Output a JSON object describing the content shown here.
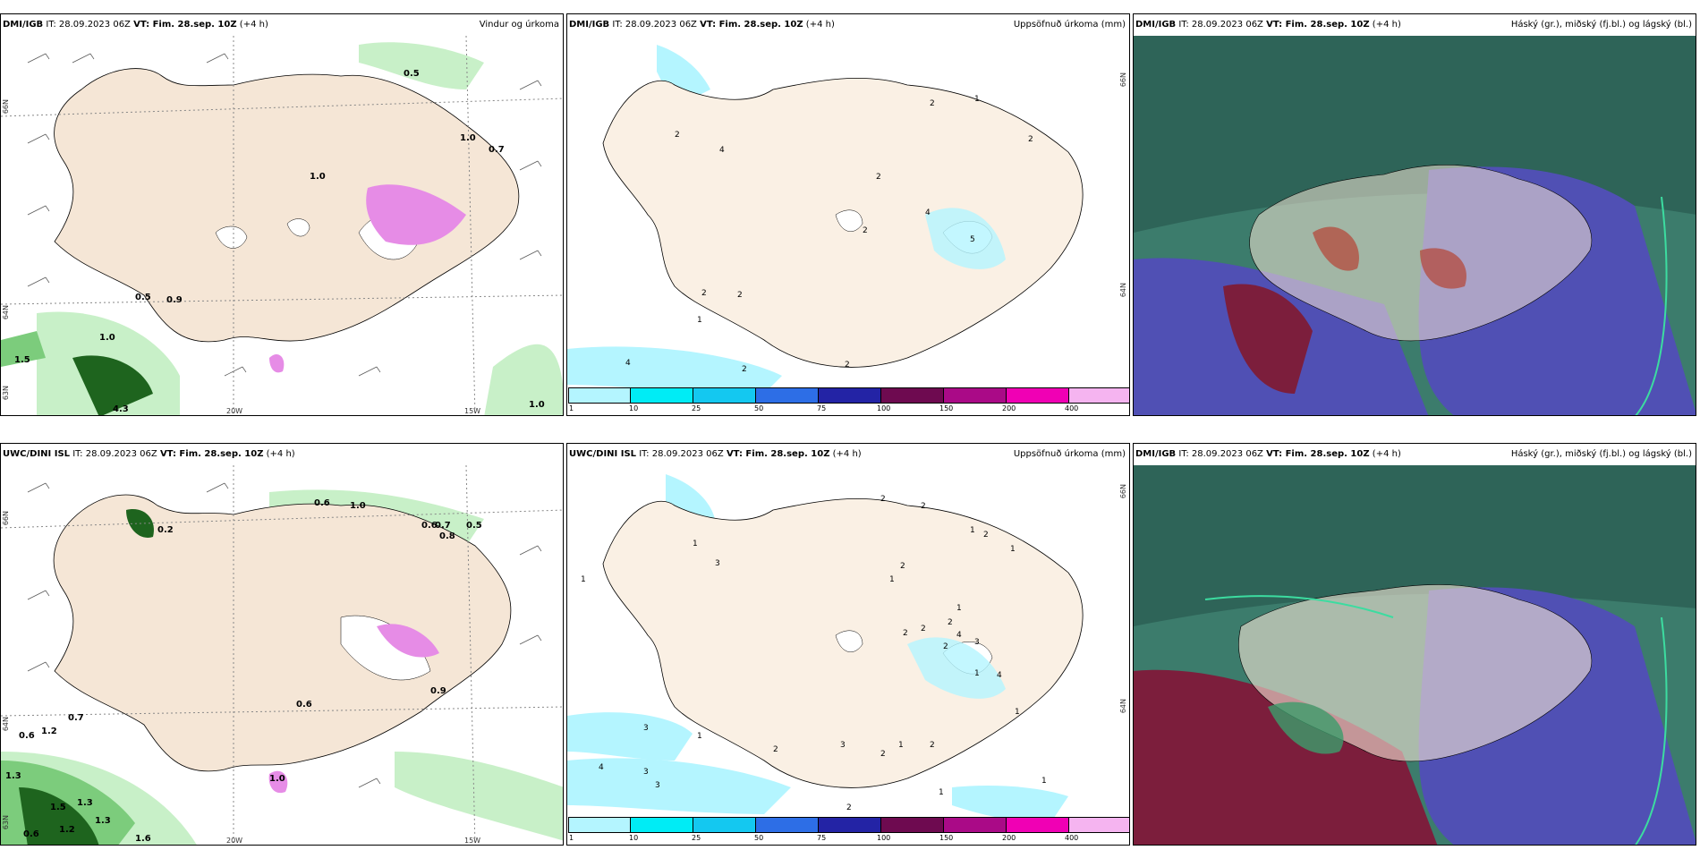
{
  "rows": [
    {
      "model": "DMI/IGB",
      "it_label": "IT:",
      "it_value": "28.09.2023 06Z",
      "vt_label": "VT: Fim. 28.sep. 10Z",
      "lead": "(+4 h)",
      "panels": {
        "wind": {
          "title": "Vindur og úrkoma",
          "values": [
            "0.5",
            "0.7",
            "1.0",
            "0.5",
            "0.9",
            "1.0",
            "1.5",
            "4.3",
            "1.0",
            "1.0"
          ]
        },
        "accum": {
          "title": "Uppsöfnuð úrkoma (mm)",
          "values": [
            "1",
            "2",
            "2",
            "4",
            "2",
            "2",
            "4",
            "5",
            "2",
            "2",
            "2",
            "1",
            "4",
            "2",
            "2"
          ]
        },
        "cloud": {
          "title": "Háský (gr.), miðský (fj.bl.) og lágský (bl.)"
        }
      }
    },
    {
      "model": "UWC/DINI ISL",
      "it_label": "IT:",
      "it_value": "28.09.2023 06Z",
      "vt_label": "VT: Fim. 28.sep. 10Z",
      "lead": "(+4 h)",
      "panels": {
        "wind": {
          "title": "",
          "values": [
            "0.2",
            "0.6",
            "1.0",
            "0.6",
            "0.7",
            "0.8",
            "0.5",
            "0.6",
            "0.9",
            "0.7",
            "0.6",
            "1.0",
            "1.2",
            "1.3",
            "1.5",
            "0.6",
            "1.2",
            "1.3",
            "1.6",
            "1.3"
          ]
        },
        "accum": {
          "title": "Uppsöfnuð úrkoma (mm)",
          "values": [
            "2",
            "2",
            "1",
            "2",
            "1",
            "3",
            "1",
            "2",
            "1",
            "1",
            "1",
            "2",
            "2",
            "2",
            "4",
            "2",
            "1",
            "3",
            "4",
            "3",
            "3",
            "4",
            "3",
            "1",
            "2",
            "2",
            "1",
            "2",
            "1",
            "3",
            "1",
            "2",
            "1"
          ]
        },
        "cloud": {
          "title": "Háský (gr.), miðský (fj.bl.) og lágský (bl.)"
        }
      }
    }
  ],
  "axis_labels": {
    "lat_66": "66N",
    "lat_64": "64N",
    "lat_63": "63N",
    "lon_20": "20W",
    "lon_15": "15W"
  },
  "colorbar": {
    "ticks": [
      "1",
      "10",
      "25",
      "50",
      "75",
      "100",
      "150",
      "200",
      "400"
    ],
    "colors": [
      "#b4f5ff",
      "#00ecf5",
      "#14c8f0",
      "#2d6ee6",
      "#2323a5",
      "#6e0a50",
      "#aa0a87",
      "#f000b4",
      "#f5b4f0"
    ]
  },
  "colors": {
    "land": "#f5e6d6",
    "precip_light": "#c8f0c8",
    "precip_mid": "#7ccc7c",
    "precip_dark": "#1e641e",
    "precip_pink": "#e68ce6",
    "cyan_precip": "#b4f5ff",
    "cloud_high": "#3c7c6c",
    "cloud_mid": "#5050b4",
    "cloud_low": "#7c1e3c"
  }
}
